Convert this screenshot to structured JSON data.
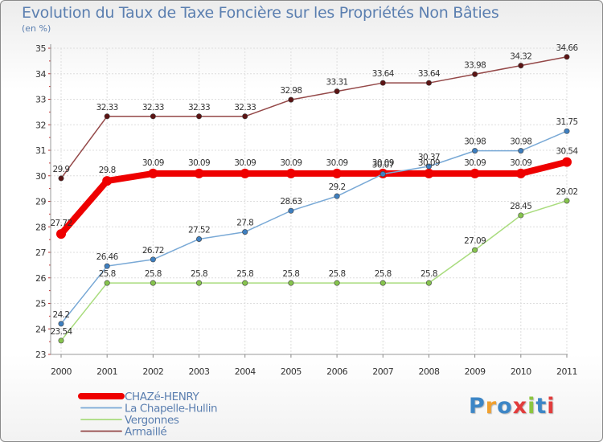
{
  "header": {
    "title": "Evolution du Taux de Taxe Foncière sur les Propriétés Non Bâties",
    "unit": "(en %)"
  },
  "logo": {
    "text": "Proxiti",
    "colors": [
      "#3d86c6",
      "#f0a030",
      "#3d86c6",
      "#e23c3c",
      "#8cc63f",
      "#3d86c6",
      "#e23c3c"
    ]
  },
  "chart_data": {
    "type": "line",
    "title": "Evolution du Taux de Taxe Foncière sur les Propriétés Non Bâties",
    "ylabel": "(en %)",
    "xlabel": "",
    "x": [
      "2000",
      "2001",
      "2002",
      "2003",
      "2004",
      "2005",
      "2006",
      "2007",
      "2008",
      "2009",
      "2010",
      "2011"
    ],
    "ylim": [
      23,
      35
    ],
    "yticks": [
      23,
      24,
      25,
      26,
      27,
      28,
      29,
      30,
      31,
      32,
      33,
      34,
      35
    ],
    "grid": true,
    "legend": "bottom-left",
    "series": [
      {
        "name": "CHAZé-HENRY",
        "color": "#ee0000",
        "dot": "#ee0000",
        "width": 8,
        "radius": 6,
        "values": [
          27.72,
          29.8,
          30.09,
          30.09,
          30.09,
          30.09,
          30.09,
          30.09,
          30.09,
          30.09,
          30.09,
          30.54
        ],
        "labels": [
          "27.72",
          "29.8",
          "30.09",
          "30.09",
          "30.09",
          "30.09",
          "30.09",
          "30.09",
          "30.09",
          "30.09",
          "30.09",
          "30.54"
        ]
      },
      {
        "name": "La Chapelle-Hullin",
        "color": "#79a9d6",
        "dot": "#3e7fc0",
        "width": 1.5,
        "radius": 3.2,
        "values": [
          24.2,
          26.46,
          26.72,
          27.52,
          27.8,
          28.63,
          29.2,
          30.07,
          30.37,
          30.98,
          30.98,
          31.75
        ],
        "labels": [
          "24.2",
          "26.46",
          "26.72",
          "27.52",
          "27.8",
          "28.63",
          "29.2",
          "30.07",
          "30.37",
          "30.98",
          "30.98",
          "31.75"
        ]
      },
      {
        "name": "Vergonnes",
        "color": "#a9dc7e",
        "dot": "#86c44d",
        "width": 1.5,
        "radius": 3.2,
        "values": [
          23.54,
          25.8,
          25.8,
          25.8,
          25.8,
          25.8,
          25.8,
          25.8,
          25.8,
          27.09,
          28.45,
          29.02
        ],
        "labels": [
          "23.54",
          "25.8",
          "25.8",
          "25.8",
          "25.8",
          "25.8",
          "25.8",
          "25.8",
          "25.8",
          "27.09",
          "28.45",
          "29.02"
        ]
      },
      {
        "name": "Armaillé",
        "color": "#944848",
        "dot": "#5c1414",
        "width": 1.5,
        "radius": 3.2,
        "values": [
          29.9,
          32.33,
          32.33,
          32.33,
          32.33,
          32.98,
          33.31,
          33.64,
          33.64,
          33.98,
          34.32,
          34.66
        ],
        "labels": [
          "29.9",
          "32.33",
          "32.33",
          "32.33",
          "32.33",
          "32.98",
          "33.31",
          "33.64",
          "33.64",
          "33.98",
          "34.32",
          "34.66"
        ]
      }
    ]
  }
}
